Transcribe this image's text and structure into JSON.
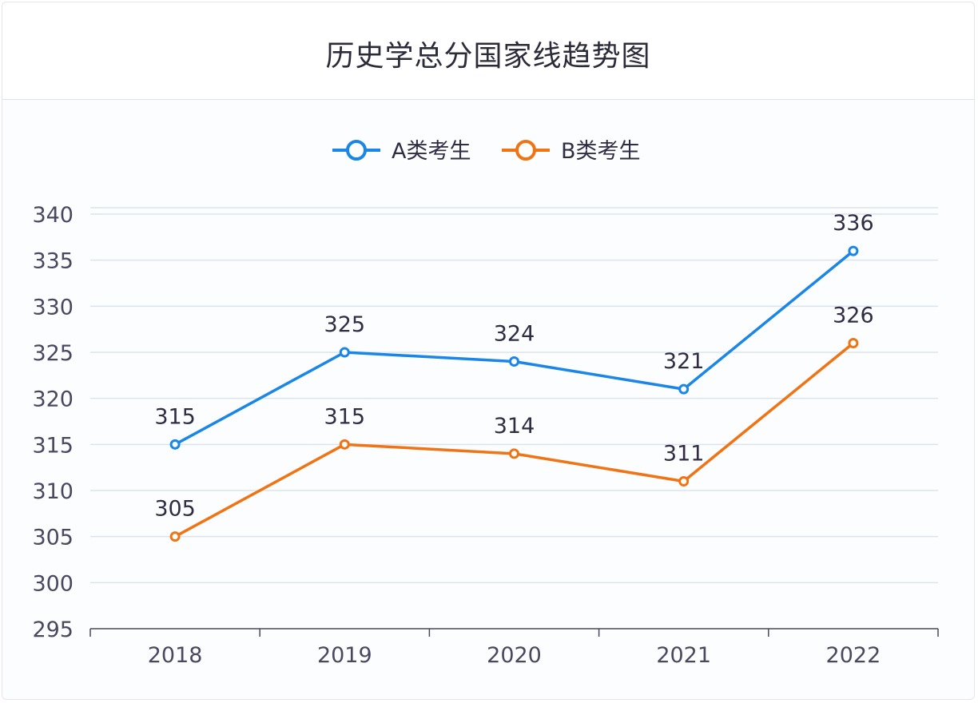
{
  "title": "历史学总分国家线趋势图",
  "chart_data": {
    "type": "line",
    "title": "历史学总分国家线趋势图",
    "categories": [
      "2018",
      "2019",
      "2020",
      "2021",
      "2022"
    ],
    "series": [
      {
        "name": "A类考生",
        "color": "#1a86e8",
        "values": [
          315,
          325,
          324,
          321,
          336
        ]
      },
      {
        "name": "B类考生",
        "color": "#f07414",
        "values": [
          305,
          315,
          314,
          311,
          326
        ]
      }
    ],
    "ylim": [
      295,
      340
    ],
    "yticks": [
      295,
      300,
      305,
      310,
      315,
      320,
      325,
      330,
      335,
      340
    ],
    "grid": true,
    "legend": "top-center",
    "data_labels": true
  }
}
